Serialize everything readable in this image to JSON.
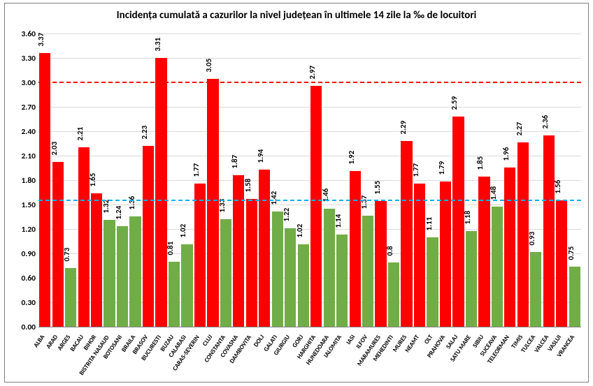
{
  "chart": {
    "type": "bar",
    "title": "Incidența cumulată a cazurilor la nivel județean în ultimele 14 zile la ‰ de locuitori",
    "title_fontsize": 15,
    "title_fontweight": "bold",
    "value_label_fontsize": 11,
    "category_label_fontsize": 9,
    "axis_label_fontsize": 11.5,
    "background_color": "#ffffff",
    "frame_border_color": "#7f7f7f",
    "grid_color": "#d9d9d9",
    "high_color": "#ff0000",
    "low_color": "#70ad47",
    "color_threshold": 1.5,
    "ylim": [
      0,
      3.6
    ],
    "ytick_step": 0.3,
    "yticks": [
      "0.00",
      "0.30",
      "0.60",
      "0.90",
      "1.20",
      "1.50",
      "1.80",
      "2.10",
      "2.40",
      "2.70",
      "3.00",
      "3.30",
      "3.60"
    ],
    "thresholds": [
      {
        "value": 1.55,
        "color": "#00b0f0",
        "dash": "8,6",
        "width": 2
      },
      {
        "value": 3.0,
        "color": "#ff0000",
        "dash": "8,6",
        "width": 2
      }
    ],
    "categories": [
      "ALBA",
      "ARAD",
      "ARGES",
      "BACAU",
      "BIHOR",
      "BISTRITA NASAUD",
      "BOTOSANI",
      "BRAILA",
      "BRASOV",
      "BUCURESTI",
      "BUZAU",
      "CALARASI",
      "CARAS-SEVERIN",
      "CLUJ",
      "CONSTANTA",
      "COVASNA",
      "DAMBOVITA",
      "DOLJ",
      "GALATI",
      "GIURGIU",
      "GORJ",
      "HARGHITA",
      "HUNEDOARA",
      "IALOMITA",
      "IASI",
      "ILFOV",
      "MARAMURES",
      "MEHEDINTI",
      "MURES",
      "NEAMT",
      "OLT",
      "PRAHOVA",
      "SALAJ",
      "SATU MARE",
      "SIBIU",
      "SUCEAVA",
      "TELEORMAN",
      "TIMIS",
      "TULCEA",
      "VALCEA",
      "VASLUI",
      "VRANCEA"
    ],
    "values": [
      3.37,
      2.03,
      0.73,
      2.21,
      1.65,
      1.32,
      1.24,
      1.36,
      2.23,
      3.31,
      0.81,
      1.02,
      1.77,
      3.05,
      1.33,
      1.87,
      1.58,
      1.94,
      1.42,
      1.22,
      1.02,
      2.97,
      1.46,
      1.14,
      1.92,
      1.37,
      1.55,
      0.8,
      2.29,
      1.77,
      1.11,
      1.79,
      2.59,
      1.18,
      1.85,
      1.48,
      1.96,
      2.27,
      0.93,
      2.36,
      1.56,
      0.75
    ],
    "bar_width": 0.88
  }
}
